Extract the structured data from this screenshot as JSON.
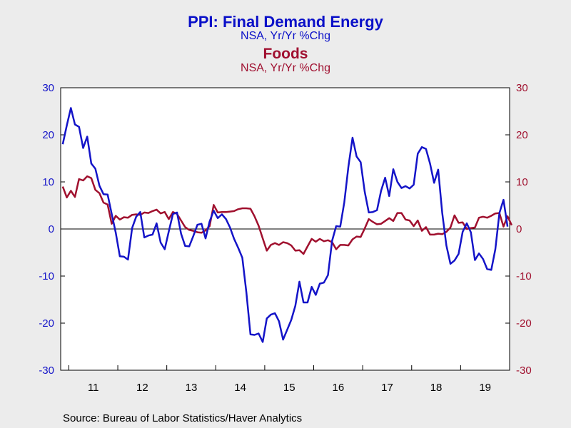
{
  "titles": {
    "line1": "PPI: Final Demand Energy",
    "line2": "NSA, Yr/Yr %Chg",
    "line3": "Foods",
    "line4": "NSA, Yr/Yr %Chg"
  },
  "source": "Source:  Bureau of Labor Statistics/Haver Analytics",
  "colors": {
    "energy": "#1414C8",
    "foods": "#A0102E",
    "background": "#ECECEC",
    "plot": "#FFFFFF"
  },
  "chart_data": {
    "type": "line",
    "start_date": "2010-11",
    "frequency": "monthly",
    "x_tick_labels": [
      "11",
      "12",
      "13",
      "14",
      "15",
      "16",
      "17",
      "18",
      "19"
    ],
    "ylim": [
      -30,
      30
    ],
    "y_ticks": [
      -30,
      -20,
      -10,
      0,
      10,
      20,
      30
    ],
    "grid": false,
    "zero_line": true,
    "legend": "titles above plot",
    "series": [
      {
        "name": "PPI: Final Demand Energy",
        "axis": "left",
        "values": [
          18,
          22,
          25.7,
          22.2,
          21.7,
          17.2,
          19.6,
          13.9,
          12.8,
          9.2,
          7.4,
          7.3,
          3.2,
          -0.8,
          -5.8,
          -5.9,
          -6.5,
          0.2,
          2.6,
          3.6,
          -1.8,
          -1.4,
          -1.2,
          1.2,
          -2.9,
          -4.3,
          -0.5,
          3.2,
          3.5,
          -1,
          -3.6,
          -3.7,
          -1.5,
          0.9,
          1.1,
          -2,
          1.6,
          3.9,
          2.3,
          3.1,
          2.1,
          0.3,
          -2.1,
          -4,
          -6.1,
          -13.5,
          -22.4,
          -22.5,
          -22.2,
          -24,
          -19,
          -18.2,
          -17.9,
          -19.6,
          -23.5,
          -21.4,
          -19.3,
          -16.3,
          -11.2,
          -15.6,
          -15.6,
          -12.3,
          -14,
          -11.6,
          -11.4,
          -9.8,
          -2.5,
          0.6,
          0.5,
          5.7,
          13.2,
          19.4,
          15.4,
          14.2,
          7.9,
          3.5,
          3.6,
          4,
          8.1,
          10.9,
          7,
          12.7,
          10,
          8.7,
          9.1,
          8.6,
          9.4,
          16,
          17.4,
          17,
          13.9,
          9.8,
          12.6,
          3.4,
          -3.5,
          -7.4,
          -6.7,
          -5.3,
          -0.6,
          1.2,
          -0.7,
          -6.6,
          -5.2,
          -6.4,
          -8.5,
          -8.7,
          -4.3,
          3.4,
          6.2,
          0.5
        ]
      },
      {
        "name": "Foods",
        "axis": "right",
        "values": [
          9,
          6.7,
          8.1,
          6.8,
          10.6,
          10.3,
          11.2,
          10.8,
          8.3,
          7.6,
          5.6,
          5.2,
          1.1,
          2.8,
          2,
          2.5,
          2.4,
          3,
          3.1,
          3,
          3.5,
          3.4,
          3.8,
          4.1,
          3.3,
          3.6,
          2.1,
          3.6,
          3.2,
          1.8,
          0.4,
          -0.2,
          -0.4,
          -0.7,
          -0.8,
          -0.3,
          0.6,
          5.1,
          3.5,
          3.6,
          3.6,
          3.7,
          3.8,
          4.2,
          4.4,
          4.4,
          4.3,
          2.7,
          0.7,
          -2,
          -4.6,
          -3.4,
          -3,
          -3.4,
          -2.8,
          -3,
          -3.5,
          -4.6,
          -4.5,
          -5.3,
          -3.7,
          -2.1,
          -2.7,
          -2.1,
          -2.6,
          -2.4,
          -2.8,
          -4.3,
          -3.4,
          -3.4,
          -3.5,
          -2.2,
          -1.6,
          -1.7,
          0.1,
          2.1,
          1.5,
          1,
          1.1,
          1.7,
          2.3,
          1.7,
          3.4,
          3.4,
          2,
          1.8,
          0.6,
          1.8,
          -0.4,
          0.4,
          -1.2,
          -1.2,
          -1,
          -1.1,
          -0.6,
          0.3,
          2.9,
          1.3,
          1.4,
          0,
          0.2,
          0.3,
          2.4,
          2.6,
          2.4,
          2.8,
          3.3,
          3.4,
          0.5,
          2.7,
          0.8
        ]
      }
    ]
  }
}
